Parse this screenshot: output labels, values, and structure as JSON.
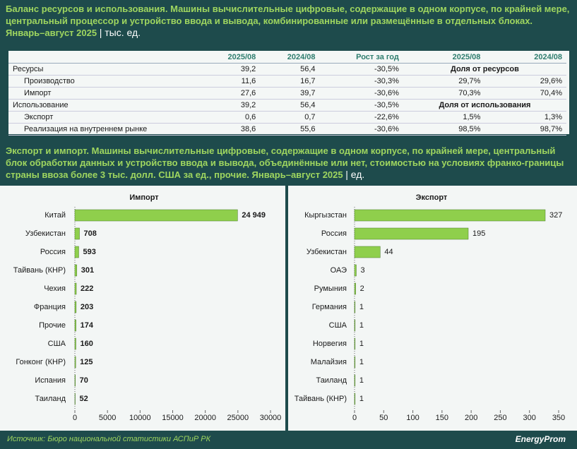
{
  "header": {
    "title": "Баланс ресурсов и использования. Машины вычислительные цифровые, содержащие в одном корпусе, по крайней мере, центральный процессор и устройство ввода и вывода, комбинированные или размещённые в отдельных блоках. Январь–август 2025",
    "unit": "| тыс. ед."
  },
  "table": {
    "columns": [
      "2025/08",
      "2024/08",
      "Рост за год",
      "2025/08",
      "2024/08"
    ],
    "groups": [
      {
        "label": "Ресурсы",
        "cells": [
          "39,2",
          "56,4",
          "-30,5%"
        ],
        "note": "Доля от ресурсов",
        "children": [
          {
            "label": "Производство",
            "cells": [
              "11,6",
              "16,7",
              "-30,3%",
              "29,7%",
              "29,6%"
            ]
          },
          {
            "label": "Импорт",
            "cells": [
              "27,6",
              "39,7",
              "-30,6%",
              "70,3%",
              "70,4%"
            ]
          }
        ]
      },
      {
        "label": "Использование",
        "cells": [
          "39,2",
          "56,4",
          "-30,5%"
        ],
        "note": "Доля от использования",
        "children": [
          {
            "label": "Экспорт",
            "cells": [
              "0,6",
              "0,7",
              "-22,6%",
              "1,5%",
              "1,3%"
            ]
          },
          {
            "label": "Реализация на внутреннем рынке",
            "cells": [
              "38,6",
              "55,6",
              "-30,6%",
              "98,5%",
              "98,7%"
            ]
          }
        ]
      }
    ]
  },
  "subheader": {
    "title": "Экспорт и импорт. Машины вычислительные цифровые, содержащие в одном корпусе, по крайней мере, центральный блок обработки данных и устройство ввода и вывода, объединённые или нет, стоимостью на условиях франко-границы страны ввоза более 3 тыс. долл. США за ед., прочие. Январь–август 2025",
    "unit": "| ед."
  },
  "chart_data": [
    {
      "type": "bar",
      "orientation": "horizontal",
      "title": "Импорт",
      "color": "#8fcf4c",
      "categories": [
        "Китай",
        "Узбекистан",
        "Россия",
        "Тайвань (КНР)",
        "Чехия",
        "Франция",
        "Прочие",
        "США",
        "Гонконг (КНР)",
        "Испания",
        "Таиланд"
      ],
      "values": [
        24949,
        708,
        593,
        301,
        222,
        203,
        174,
        160,
        125,
        70,
        52
      ],
      "value_labels": [
        "24 949",
        "708",
        "593",
        "301",
        "222",
        "203",
        "174",
        "160",
        "125",
        "70",
        "52"
      ],
      "xlim": [
        0,
        30000
      ],
      "xticks": [
        0,
        5000,
        10000,
        15000,
        20000,
        25000,
        30000
      ],
      "grid": false
    },
    {
      "type": "bar",
      "orientation": "horizontal",
      "title": "Экспорт",
      "color": "#8fcf4c",
      "categories": [
        "Кыргызстан",
        "Россия",
        "Узбекистан",
        "ОАЭ",
        "Румыния",
        "Германия",
        "США",
        "Норвегия",
        "Малайзия",
        "Таиланд",
        "Тайвань (КНР)"
      ],
      "values": [
        327,
        195,
        44,
        3,
        2,
        1,
        1,
        1,
        1,
        1,
        1
      ],
      "value_labels": [
        "327",
        "195",
        "44",
        "3",
        "2",
        "1",
        "1",
        "1",
        "1",
        "1",
        "1"
      ],
      "xlim": [
        0,
        350
      ],
      "xticks": [
        0,
        50,
        100,
        150,
        200,
        250,
        300,
        350
      ],
      "grid": false
    }
  ],
  "footer": {
    "source": "Источник: Бюро национальной статистики АСПиР РК",
    "logo": "EnergyProm"
  }
}
